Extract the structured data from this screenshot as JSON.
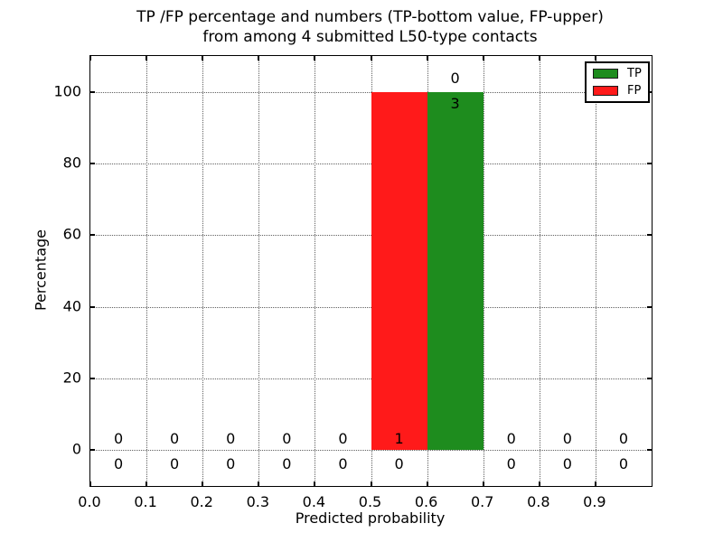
{
  "chart_data": {
    "type": "bar",
    "title_lines": [
      "TP /FP percentage and numbers (TP-bottom value, FP-upper)",
      "from among 4 submitted L50-type contacts"
    ],
    "xlabel": "Predicted probability",
    "ylabel": "Percentage",
    "xlim": [
      0.0,
      1.0
    ],
    "ylim": [
      -10,
      110
    ],
    "grid": "dotted",
    "legend_position": "upper right",
    "xticks": {
      "values": [
        0.0,
        0.1,
        0.2,
        0.3,
        0.4,
        0.5,
        0.6,
        0.7,
        0.8,
        0.9
      ],
      "labels": [
        "0.0",
        "0.1",
        "0.2",
        "0.3",
        "0.4",
        "0.5",
        "0.6",
        "0.7",
        "0.8",
        "0.9"
      ]
    },
    "yticks": {
      "values": [
        0,
        20,
        40,
        60,
        80,
        100
      ],
      "labels": [
        "0",
        "20",
        "40",
        "60",
        "80",
        "100"
      ]
    },
    "bin_centers": [
      0.05,
      0.15,
      0.25,
      0.35,
      0.45,
      0.55,
      0.65,
      0.75,
      0.85,
      0.95
    ],
    "series": [
      {
        "name": "TP",
        "color": "#1e8c1e",
        "percentages": [
          0,
          0,
          0,
          0,
          0,
          0,
          100,
          0,
          0,
          0
        ],
        "counts": [
          0,
          0,
          0,
          0,
          0,
          0,
          3,
          0,
          0,
          0
        ]
      },
      {
        "name": "FP",
        "color": "#ff1a1a",
        "percentages": [
          0,
          0,
          0,
          0,
          0,
          100,
          0,
          0,
          0,
          0
        ],
        "counts": [
          0,
          0,
          0,
          0,
          0,
          1,
          0,
          0,
          0,
          0
        ]
      }
    ],
    "bars": [
      {
        "series": "FP",
        "x0": 0.5,
        "x1": 0.6,
        "percent": 100,
        "color": "#ff1a1a"
      },
      {
        "series": "TP",
        "x0": 0.6,
        "x1": 0.7,
        "percent": 100,
        "color": "#1e8c1e"
      }
    ],
    "annotations": [
      {
        "x": 0.05,
        "row": "fp",
        "text": "0"
      },
      {
        "x": 0.05,
        "row": "tp",
        "text": "0"
      },
      {
        "x": 0.15,
        "row": "fp",
        "text": "0"
      },
      {
        "x": 0.15,
        "row": "tp",
        "text": "0"
      },
      {
        "x": 0.25,
        "row": "fp",
        "text": "0"
      },
      {
        "x": 0.25,
        "row": "tp",
        "text": "0"
      },
      {
        "x": 0.35,
        "row": "fp",
        "text": "0"
      },
      {
        "x": 0.35,
        "row": "tp",
        "text": "0"
      },
      {
        "x": 0.45,
        "row": "fp",
        "text": "0"
      },
      {
        "x": 0.45,
        "row": "tp",
        "text": "0"
      },
      {
        "x": 0.55,
        "row": "fp",
        "text": "1"
      },
      {
        "x": 0.55,
        "row": "tp",
        "text": "0"
      },
      {
        "x": 0.65,
        "row": "fp_top",
        "text": "0"
      },
      {
        "x": 0.65,
        "row": "tp_top",
        "text": "3"
      },
      {
        "x": 0.75,
        "row": "fp",
        "text": "0"
      },
      {
        "x": 0.75,
        "row": "tp",
        "text": "0"
      },
      {
        "x": 0.85,
        "row": "fp",
        "text": "0"
      },
      {
        "x": 0.85,
        "row": "tp",
        "text": "0"
      },
      {
        "x": 0.95,
        "row": "fp",
        "text": "0"
      },
      {
        "x": 0.95,
        "row": "tp",
        "text": "0"
      }
    ],
    "legend": [
      {
        "label": "TP",
        "color": "#1e8c1e"
      },
      {
        "label": "FP",
        "color": "#ff1a1a"
      }
    ],
    "colors": {
      "tp": "#1e8c1e",
      "fp": "#ff1a1a",
      "grid": "#606060",
      "axis": "#000000"
    }
  }
}
